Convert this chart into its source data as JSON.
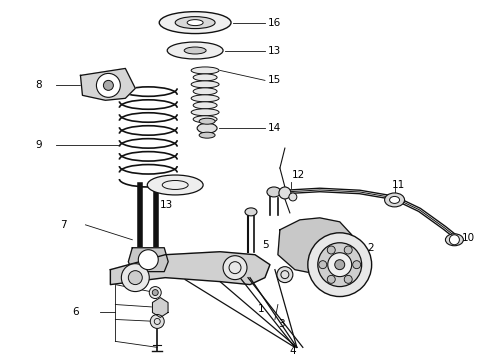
{
  "background_color": "#ffffff",
  "line_color": "#111111",
  "fig_width": 4.9,
  "fig_height": 3.6,
  "dpi": 100
}
